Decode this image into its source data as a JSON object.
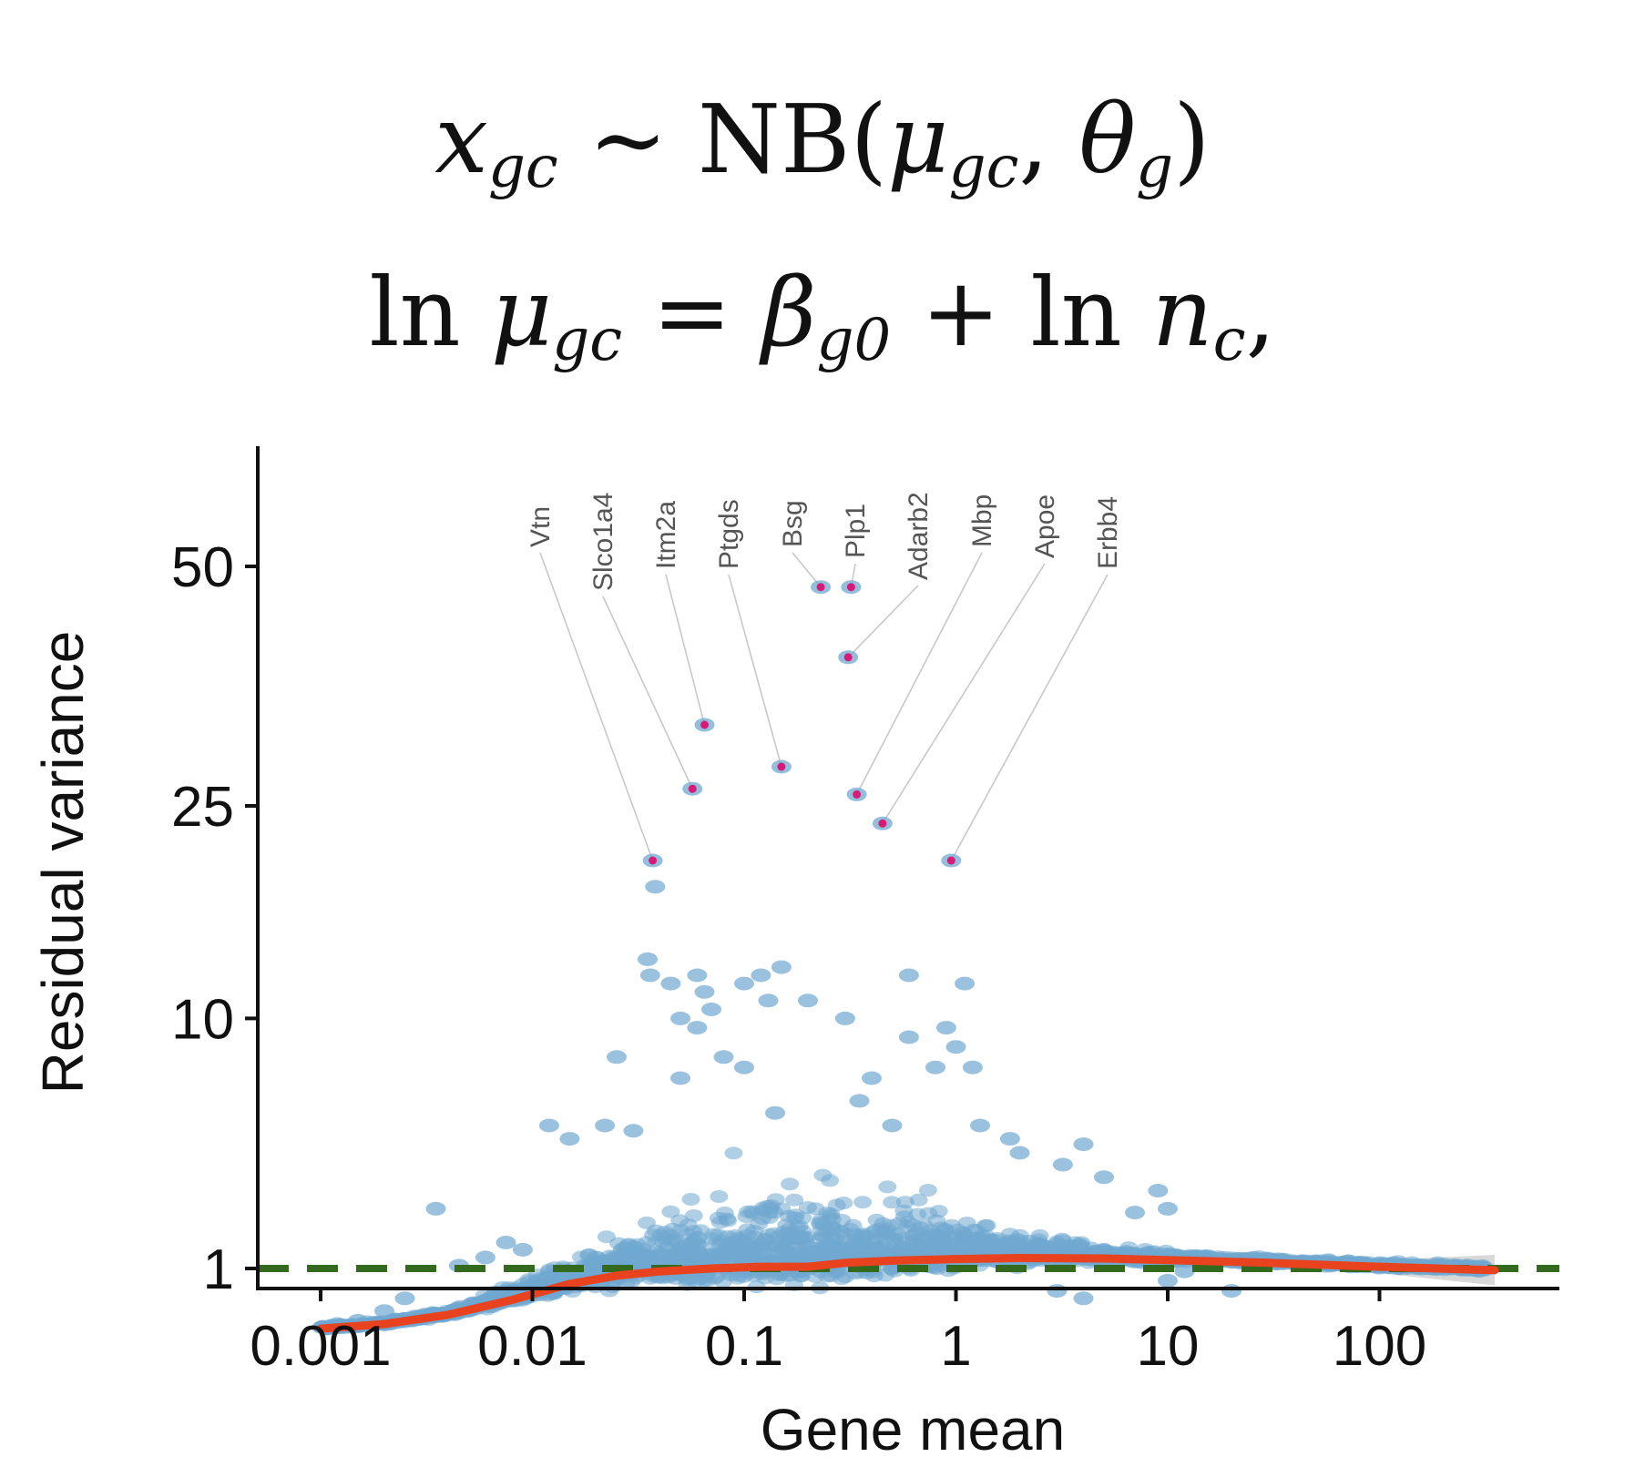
{
  "equations": {
    "line1": {
      "lhs": "x",
      "lhs_sub": "gc",
      "rel": "∼",
      "fn": "NB(",
      "a": "μ",
      "a_sub": "gc",
      "sep": ", ",
      "b": "θ",
      "b_sub": "g",
      "close": ")"
    },
    "line2": {
      "ln1": "ln ",
      "mu": "μ",
      "mu_sub": "gc",
      "eq": " = ",
      "beta": "β",
      "beta_sub": "g0",
      "plus": " + ln ",
      "n": "n",
      "n_sub": "c",
      "trail": ","
    }
  },
  "chart_data": {
    "type": "scatter",
    "xlabel": "Gene mean",
    "ylabel": "Residual variance",
    "x_scale": "log10",
    "y_scale": "sqrt",
    "xlim": [
      0.0005,
      700
    ],
    "ylim": [
      0.12,
      80
    ],
    "x_ticks": [
      0.001,
      0.01,
      0.1,
      1,
      10,
      100
    ],
    "x_tick_labels": [
      "0.001",
      "0.01",
      "0.1",
      "1",
      "10",
      "100"
    ],
    "y_ticks": [
      1,
      10,
      25,
      50
    ],
    "y_tick_labels": [
      "1",
      "10",
      "25",
      "50"
    ],
    "reference_line": {
      "y": 1,
      "style": "dashed",
      "color": "#336a1e"
    },
    "trend_line": {
      "color": "#e8421e",
      "x": [
        0.001,
        0.002,
        0.004,
        0.008,
        0.015,
        0.025,
        0.04,
        0.07,
        0.12,
        0.2,
        0.3,
        0.5,
        1,
        2,
        5,
        10,
        30,
        100,
        350
      ],
      "y": [
        0.23,
        0.27,
        0.36,
        0.53,
        0.75,
        0.88,
        0.95,
        1.0,
        1.03,
        1.03,
        1.1,
        1.14,
        1.17,
        1.19,
        1.18,
        1.15,
        1.1,
        1.03,
        0.97
      ],
      "band_lower": [
        0.22,
        0.26,
        0.35,
        0.52,
        0.74,
        0.87,
        0.94,
        0.99,
        1.02,
        1.02,
        1.09,
        1.13,
        1.16,
        1.18,
        1.16,
        1.12,
        1.05,
        0.92,
        0.73
      ],
      "band_upper": [
        0.24,
        0.28,
        0.37,
        0.54,
        0.76,
        0.89,
        0.96,
        1.01,
        1.04,
        1.04,
        1.11,
        1.15,
        1.18,
        1.2,
        1.2,
        1.18,
        1.15,
        1.15,
        1.25
      ]
    },
    "scatter_color": "#6fa8d0",
    "highlight_color": "#d81b78",
    "labeled_genes": [
      {
        "name": "Vtn",
        "x": 0.037,
        "y": 20.5
      },
      {
        "name": "Slco1a4",
        "x": 0.057,
        "y": 26.5
      },
      {
        "name": "Itm2a",
        "x": 0.065,
        "y": 32.5
      },
      {
        "name": "Ptgds",
        "x": 0.15,
        "y": 28.5
      },
      {
        "name": "Bsg",
        "x": 0.23,
        "y": 47.5
      },
      {
        "name": "Plp1",
        "x": 0.32,
        "y": 47.5
      },
      {
        "name": "Adarb2",
        "x": 0.31,
        "y": 39.5
      },
      {
        "name": "Mbp",
        "x": 0.34,
        "y": 26.0
      },
      {
        "name": "Apoe",
        "x": 0.45,
        "y": 23.5
      },
      {
        "name": "Erbb4",
        "x": 0.95,
        "y": 20.5
      }
    ],
    "highlight_points": [
      {
        "x": 0.038,
        "y": 18.5
      },
      {
        "x": 0.035,
        "y": 13.5
      },
      {
        "x": 0.036,
        "y": 12.5
      },
      {
        "x": 0.045,
        "y": 12.0
      },
      {
        "x": 0.06,
        "y": 12.5
      },
      {
        "x": 0.065,
        "y": 11.5
      },
      {
        "x": 0.05,
        "y": 10.0
      },
      {
        "x": 0.06,
        "y": 9.5
      },
      {
        "x": 0.07,
        "y": 10.5
      },
      {
        "x": 0.1,
        "y": 12.0
      },
      {
        "x": 0.12,
        "y": 12.5
      },
      {
        "x": 0.15,
        "y": 13.0
      },
      {
        "x": 0.13,
        "y": 11.0
      },
      {
        "x": 0.2,
        "y": 11.0
      },
      {
        "x": 0.3,
        "y": 10.0
      },
      {
        "x": 0.6,
        "y": 12.5
      },
      {
        "x": 1.1,
        "y": 12.0
      },
      {
        "x": 0.9,
        "y": 9.5
      },
      {
        "x": 1.0,
        "y": 8.5
      },
      {
        "x": 1.2,
        "y": 7.5
      },
      {
        "x": 0.6,
        "y": 9.0
      },
      {
        "x": 0.8,
        "y": 7.5
      },
      {
        "x": 0.025,
        "y": 8.0
      },
      {
        "x": 0.05,
        "y": 7.0
      },
      {
        "x": 0.1,
        "y": 7.5
      },
      {
        "x": 0.08,
        "y": 8.0
      },
      {
        "x": 0.4,
        "y": 7.0
      },
      {
        "x": 0.35,
        "y": 6.0
      },
      {
        "x": 0.012,
        "y": 5.0
      },
      {
        "x": 0.015,
        "y": 4.5
      },
      {
        "x": 0.022,
        "y": 5.0
      },
      {
        "x": 0.03,
        "y": 4.8
      },
      {
        "x": 0.14,
        "y": 5.5
      },
      {
        "x": 0.5,
        "y": 5.0
      },
      {
        "x": 1.3,
        "y": 5.0
      },
      {
        "x": 1.8,
        "y": 4.5
      },
      {
        "x": 2.0,
        "y": 4.0
      },
      {
        "x": 4.0,
        "y": 4.3
      },
      {
        "x": 3.2,
        "y": 3.6
      },
      {
        "x": 5.0,
        "y": 3.2
      },
      {
        "x": 9.0,
        "y": 2.8
      },
      {
        "x": 10.0,
        "y": 2.3
      },
      {
        "x": 7.0,
        "y": 2.2
      },
      {
        "x": 0.0035,
        "y": 2.3
      },
      {
        "x": 0.006,
        "y": 1.2
      },
      {
        "x": 0.0045,
        "y": 1.05
      },
      {
        "x": 0.0075,
        "y": 1.5
      },
      {
        "x": 0.009,
        "y": 1.35
      },
      {
        "x": 0.0025,
        "y": 0.55
      },
      {
        "x": 0.002,
        "y": 0.4
      },
      {
        "x": 0.0015,
        "y": 0.3
      },
      {
        "x": 0.0012,
        "y": 0.27
      },
      {
        "x": 10.0,
        "y": 0.8
      },
      {
        "x": 12.0,
        "y": 0.95
      },
      {
        "x": 20.0,
        "y": 0.65
      },
      {
        "x": 3.0,
        "y": 0.65
      },
      {
        "x": 4.0,
        "y": 0.55
      },
      {
        "x": 0.06,
        "y": 1.6
      },
      {
        "x": 0.03,
        "y": 1.4
      }
    ]
  }
}
